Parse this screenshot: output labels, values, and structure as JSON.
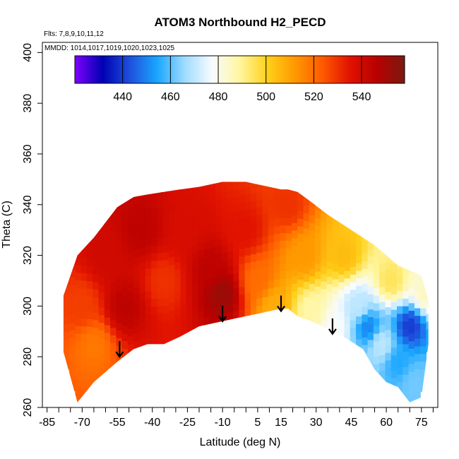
{
  "chart_data": {
    "type": "heatmap",
    "title": "ATOM3 Northbound H2_PECD",
    "flights_note": "Flts: 7,8,9,10,11,12",
    "dates_note": "MMDD: 1014,1017,1019,1020,1023,1025",
    "xlabel": "Latitude (deg N)",
    "ylabel": "Theta (C)",
    "xlim": [
      -87,
      82
    ],
    "ylim": [
      260,
      404
    ],
    "x_ticks": [
      -85,
      -80,
      -75,
      -70,
      -65,
      -60,
      -55,
      -50,
      -45,
      -40,
      -35,
      -30,
      -25,
      -20,
      -15,
      -10,
      -5,
      0,
      5,
      10,
      15,
      20,
      25,
      30,
      35,
      40,
      45,
      50,
      55,
      60,
      65,
      70,
      75,
      80
    ],
    "x_tick_labels": [
      "-85",
      "-70",
      "-55",
      "-40",
      "-25",
      "-10",
      "5",
      "15",
      "30",
      "45",
      "60",
      "75"
    ],
    "y_ticks": [
      260,
      280,
      300,
      320,
      340,
      360,
      380,
      400
    ],
    "y_tick_labels": [
      "260",
      "280",
      "300",
      "320",
      "340",
      "360",
      "380",
      "400"
    ],
    "colorbar": {
      "min": 420,
      "max": 558,
      "ticks": [
        440,
        460,
        480,
        500,
        520,
        540
      ],
      "tick_labels": [
        "440",
        "460",
        "480",
        "500",
        "520",
        "540"
      ],
      "colors": [
        "#7f00ff",
        "#0000b3",
        "#1e50dc",
        "#1aa6ff",
        "#9fdcff",
        "#f8fbff",
        "#fff6a0",
        "#ffd11a",
        "#ff9900",
        "#ff5a00",
        "#e11200",
        "#b80000",
        "#7a1a10"
      ]
    },
    "envelope": {
      "lat": [
        -78,
        -72,
        -65,
        -55,
        -48,
        -42,
        -35,
        -28,
        -20,
        -10,
        -5,
        0,
        5,
        10,
        15,
        18,
        22,
        28,
        35,
        40,
        45,
        50,
        55,
        60,
        65,
        70,
        75,
        78
      ],
      "theta_top": [
        304,
        320,
        327,
        339,
        343,
        344,
        345,
        346,
        347,
        349,
        349,
        349,
        348,
        347,
        346,
        346,
        345,
        341,
        336,
        333,
        330,
        327,
        324,
        320,
        316,
        314,
        312,
        302
      ],
      "theta_bottom": [
        282,
        262,
        270,
        278,
        283,
        285,
        285,
        288,
        292,
        294,
        295,
        296,
        297,
        298,
        299,
        299,
        296,
        294,
        291,
        289,
        286,
        283,
        275,
        270,
        268,
        262,
        264,
        285
      ]
    },
    "value_regions": [
      {
        "lat": -70,
        "theta": 300,
        "value": 528
      },
      {
        "lat": -65,
        "theta": 285,
        "value": 518
      },
      {
        "lat": -60,
        "theta": 320,
        "value": 540
      },
      {
        "lat": -52,
        "theta": 300,
        "value": 545
      },
      {
        "lat": -45,
        "theta": 330,
        "value": 545
      },
      {
        "lat": -35,
        "theta": 310,
        "value": 530
      },
      {
        "lat": -25,
        "theta": 330,
        "value": 538
      },
      {
        "lat": -15,
        "theta": 315,
        "value": 545
      },
      {
        "lat": -10,
        "theta": 305,
        "value": 552
      },
      {
        "lat": 0,
        "theta": 330,
        "value": 535
      },
      {
        "lat": 5,
        "theta": 310,
        "value": 520
      },
      {
        "lat": 12,
        "theta": 300,
        "value": 508
      },
      {
        "lat": 18,
        "theta": 340,
        "value": 530
      },
      {
        "lat": 25,
        "theta": 320,
        "value": 512
      },
      {
        "lat": 28,
        "theta": 298,
        "value": 488
      },
      {
        "lat": 38,
        "theta": 292,
        "value": 478
      },
      {
        "lat": 42,
        "theta": 320,
        "value": 505
      },
      {
        "lat": 48,
        "theta": 300,
        "value": 470
      },
      {
        "lat": 52,
        "theta": 292,
        "value": 450
      },
      {
        "lat": 58,
        "theta": 285,
        "value": 470
      },
      {
        "lat": 62,
        "theta": 310,
        "value": 495
      },
      {
        "lat": 65,
        "theta": 278,
        "value": 455
      },
      {
        "lat": 70,
        "theta": 292,
        "value": 440
      },
      {
        "lat": 72,
        "theta": 270,
        "value": 462
      },
      {
        "lat": 77,
        "theta": 305,
        "value": 485
      }
    ],
    "arrows": [
      {
        "lat": -54,
        "theta": 280
      },
      {
        "lat": -10,
        "theta": 294
      },
      {
        "lat": 15,
        "theta": 298
      },
      {
        "lat": 37,
        "theta": 289
      }
    ]
  }
}
